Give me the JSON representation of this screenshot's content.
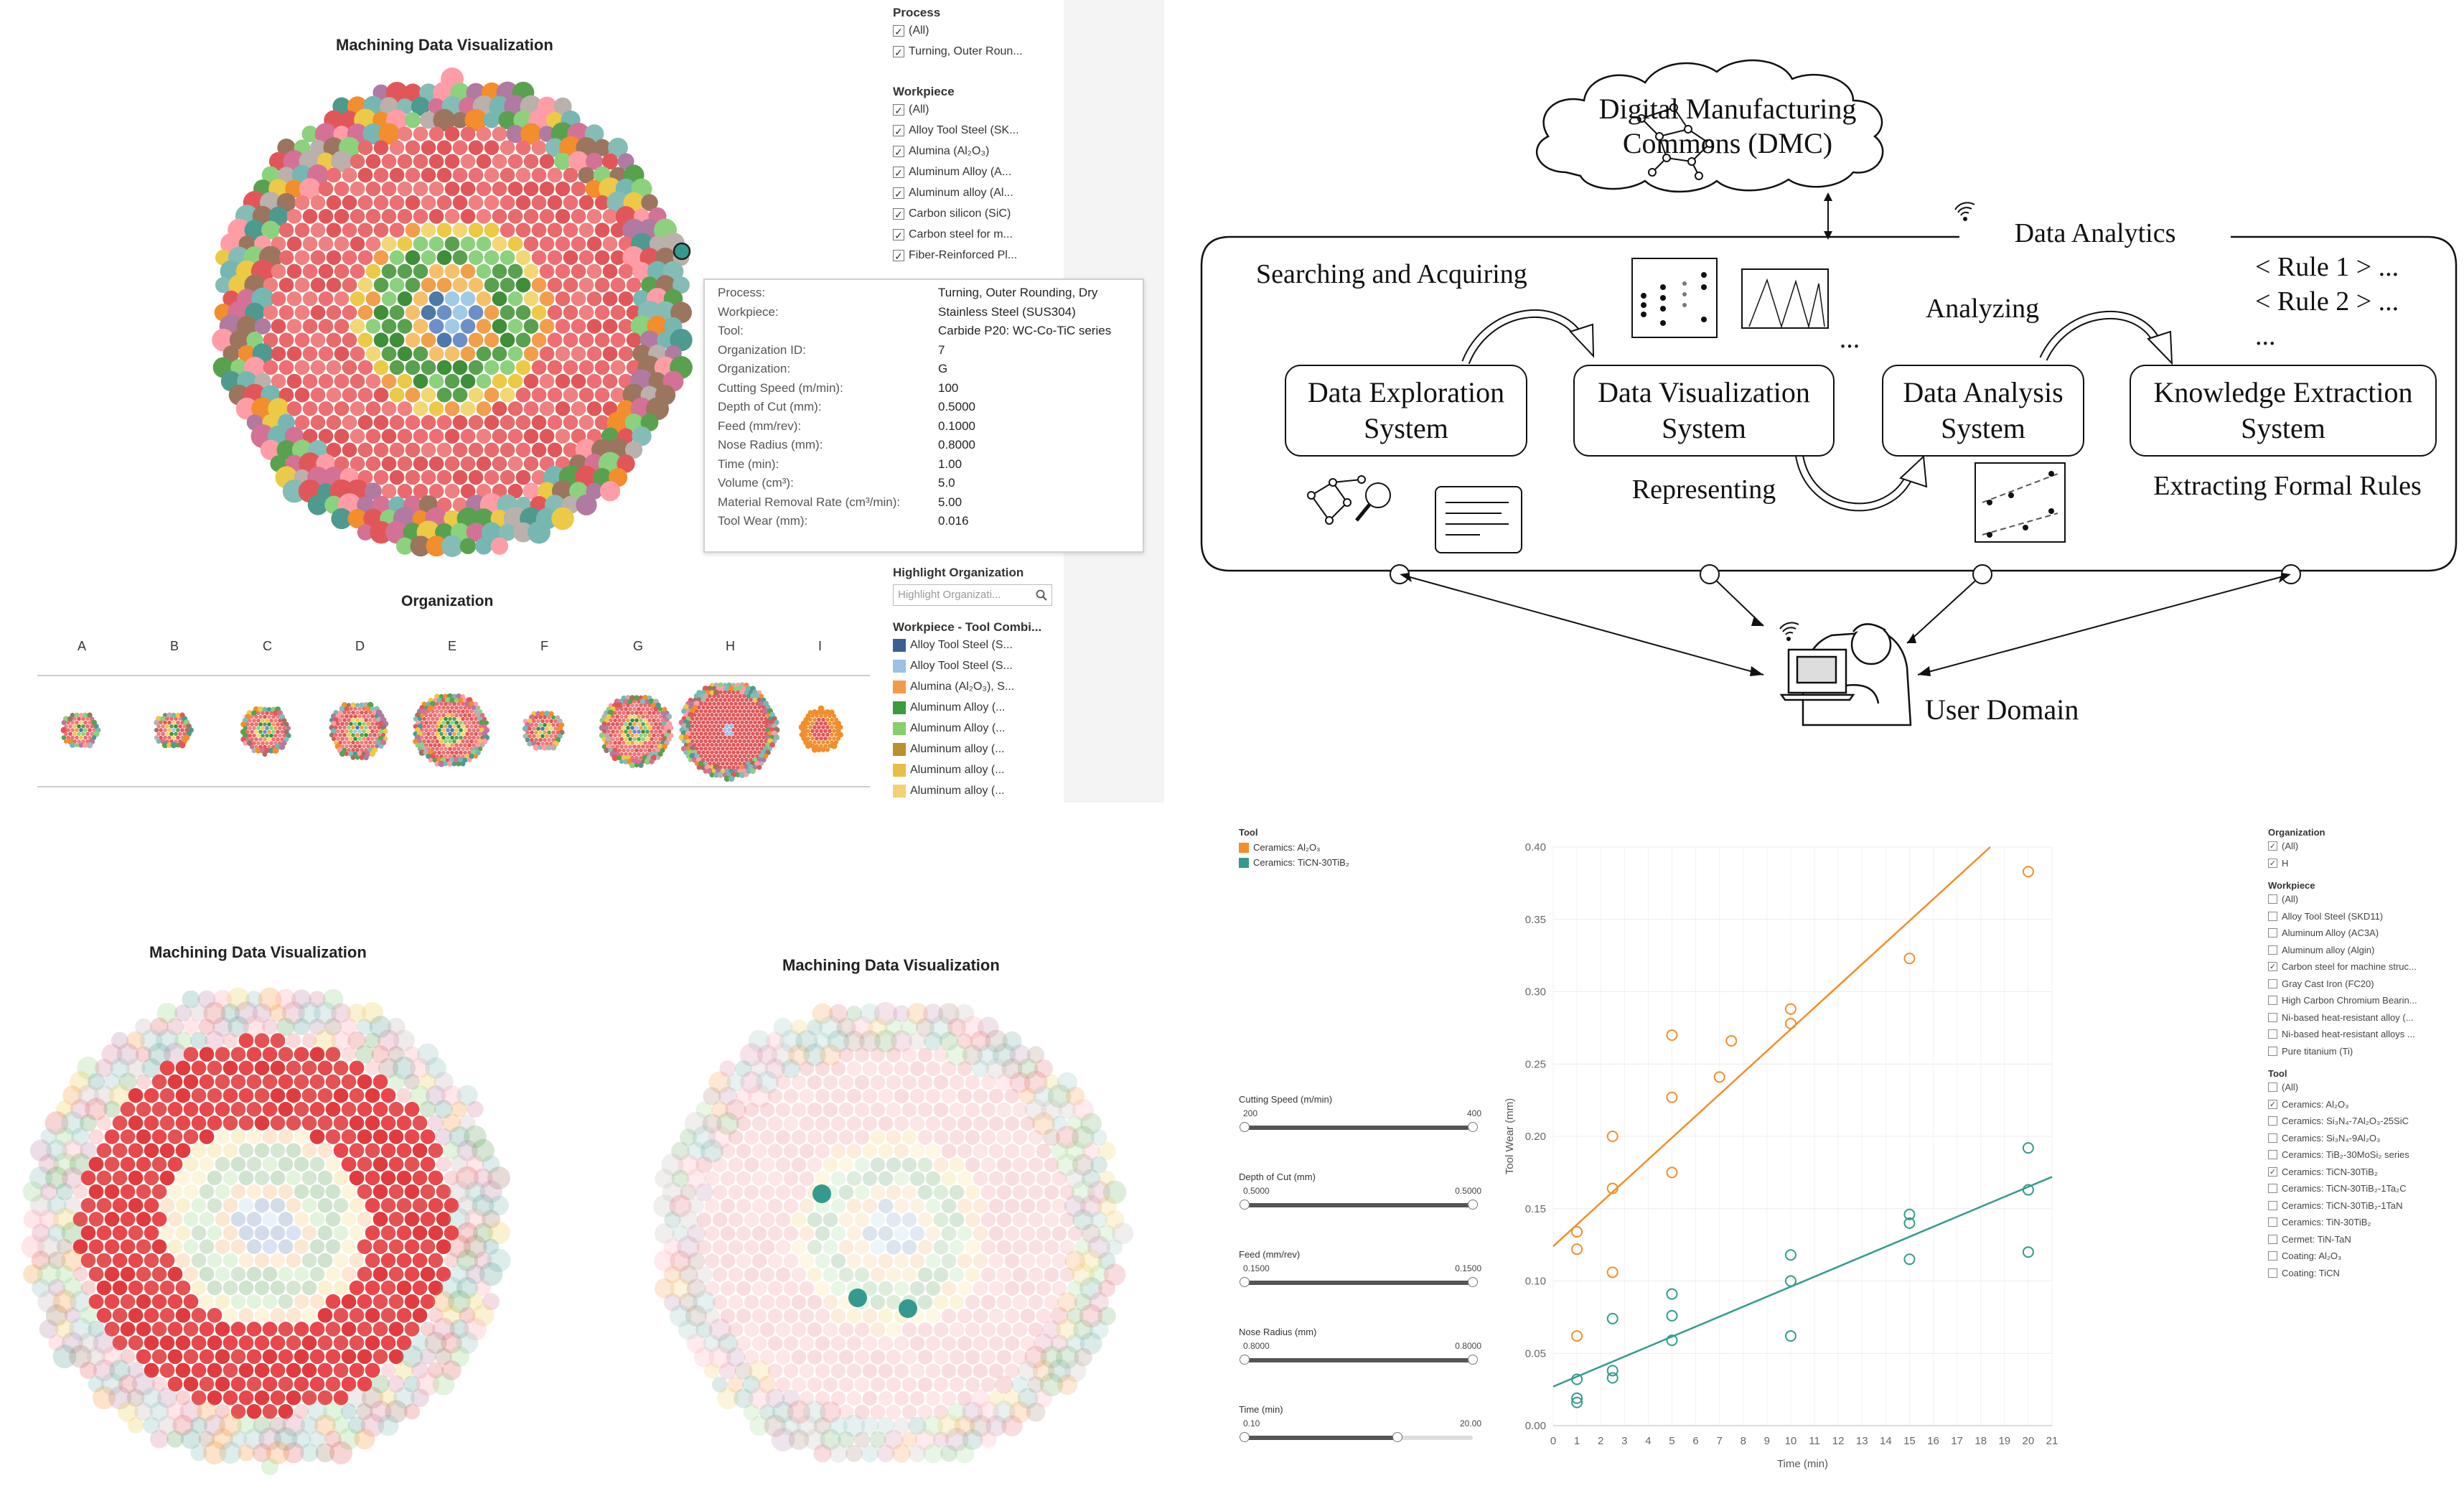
{
  "panel1": {
    "title": "Machining Data Visualization",
    "org_title": "Organization",
    "org_labels": [
      "A",
      "B",
      "C",
      "D",
      "E",
      "F",
      "G",
      "H",
      "I"
    ],
    "process": {
      "title": "Process",
      "items": [
        "(All)",
        "Turning, Outer Roun..."
      ]
    },
    "workpiece": {
      "title": "Workpiece",
      "items": [
        "(All)",
        "Alloy Tool Steel (SK...",
        "Alumina (Al₂O₃)",
        "Aluminum Alloy (A...",
        "Aluminum alloy (Al...",
        "Carbon silicon (SiC)",
        "Carbon steel for m...",
        "Fiber-Reinforced Pl..."
      ]
    },
    "highlight": {
      "title": "Highlight Organization",
      "placeholder": "Highlight Organizati..."
    },
    "legend": {
      "title": "Workpiece - Tool Combi...",
      "items": [
        {
          "label": "Alloy Tool Steel (S...",
          "color": "#3a5f96"
        },
        {
          "label": "Alloy Tool Steel (S...",
          "color": "#9cc0e6"
        },
        {
          "label": "Alumina (Al₂O₃), S...",
          "color": "#f29a48"
        },
        {
          "label": "Aluminum Alloy (...",
          "color": "#3e9a3e"
        },
        {
          "label": "Aluminum Alloy (...",
          "color": "#86cf6d"
        },
        {
          "label": "Aluminum alloy (...",
          "color": "#b8922e"
        },
        {
          "label": "Aluminum alloy (...",
          "color": "#e7bf44"
        },
        {
          "label": "Aluminum alloy (...",
          "color": "#f2d275"
        }
      ]
    },
    "tooltip": {
      "rows": [
        {
          "k": "Process:",
          "v": "Turning, Outer Rounding, Dry"
        },
        {
          "k": "Workpiece:",
          "v": "Stainless Steel (SUS304)"
        },
        {
          "k": "Tool:",
          "v": "Carbide P20: WC-Co-TiC series"
        },
        {
          "k": "Organization ID:",
          "v": "7"
        },
        {
          "k": "Organization:",
          "v": "G"
        },
        {
          "k": "Cutting Speed (m/min):",
          "v": "100"
        },
        {
          "k": "Depth of Cut (mm):",
          "v": "0.5000"
        },
        {
          "k": "Feed (mm/rev):",
          "v": "0.1000"
        },
        {
          "k": "Nose Radius (mm):",
          "v": "0.8000"
        },
        {
          "k": "Time (min):",
          "v": "1.00"
        },
        {
          "k": "Volume (cm³):",
          "v": "5.0"
        },
        {
          "k": "Material Removal Rate (cm³/min):",
          "v": "5.00"
        },
        {
          "k": "Tool Wear (mm):",
          "v": "0.016"
        }
      ]
    }
  },
  "panel2": {
    "dmc": [
      "Digital Manufacturing",
      "Commons (DMC)"
    ],
    "analytics": "Data Analytics",
    "searching": "Searching and Acquiring",
    "analyzing": "Analyzing",
    "representing": "Representing",
    "extracting": "Extracting Formal Rules",
    "rules": [
      "< Rule 1 > ...",
      "< Rule 2 > ...",
      "..."
    ],
    "dots": "...",
    "systems": [
      [
        "Data Exploration",
        "System"
      ],
      [
        "Data Visualization",
        "System"
      ],
      [
        "Data Analysis",
        "System"
      ],
      [
        "Knowledge Extraction",
        "System"
      ]
    ],
    "user": "User Domain"
  },
  "panel3": {
    "title_left": "Machining Data Visualization",
    "title_right": "Machining Data Visualization"
  },
  "panel4": {
    "tool_legend_title": "Tool",
    "tool_legend": [
      {
        "label": "Ceramics: Al₂O₃",
        "color": "#f28e2b"
      },
      {
        "label": "Ceramics: TiCN-30TiB₂",
        "color": "#359a8e"
      }
    ],
    "sliders": [
      {
        "label": "Cutting Speed (m/min)",
        "min": "200",
        "max": "400",
        "from": 0,
        "to": 1
      },
      {
        "label": "Depth of Cut (mm)",
        "min": "0.5000",
        "max": "0.5000",
        "from": 0,
        "to": 1
      },
      {
        "label": "Feed (mm/rev)",
        "min": "0.1500",
        "max": "0.1500",
        "from": 0,
        "to": 1
      },
      {
        "label": "Nose Radius (mm)",
        "min": "0.8000",
        "max": "0.8000",
        "from": 0,
        "to": 1
      },
      {
        "label": "Time (min)",
        "min": "0.10",
        "max": "20.00",
        "from": 0,
        "to": 0.67
      }
    ],
    "organization": {
      "title": "Organization",
      "items": [
        {
          "label": "(All)",
          "checked": true
        },
        {
          "label": "H",
          "checked": true
        }
      ]
    },
    "workpiece": {
      "title": "Workpiece",
      "items": [
        {
          "label": "(All)",
          "checked": false
        },
        {
          "label": "Alloy Tool Steel (SKD11)",
          "checked": false
        },
        {
          "label": "Aluminum Alloy (AC3A)",
          "checked": false
        },
        {
          "label": "Aluminum alloy (Algin)",
          "checked": false
        },
        {
          "label": "Carbon steel for machine struc...",
          "checked": true
        },
        {
          "label": "Gray Cast Iron (FC20)",
          "checked": false
        },
        {
          "label": "High Carbon Chromium Bearin...",
          "checked": false
        },
        {
          "label": "Ni-based heat-resistant alloy (...",
          "checked": false
        },
        {
          "label": "Ni-based heat-resistant alloys ...",
          "checked": false
        },
        {
          "label": "Pure titanium (Ti)",
          "checked": false
        }
      ]
    },
    "tool": {
      "title": "Tool",
      "items": [
        {
          "label": "(All)",
          "checked": false
        },
        {
          "label": "Ceramics: Al₂O₃",
          "checked": true
        },
        {
          "label": "Ceramics: Si₃N₄-7Al₂O₃-25SiC",
          "checked": false
        },
        {
          "label": "Ceramics: Si₃N₄-9Al₂O₃",
          "checked": false
        },
        {
          "label": "Ceramics: TiB₂-30MoSi₂ series",
          "checked": false
        },
        {
          "label": "Ceramics: TiCN-30TiB₂",
          "checked": true
        },
        {
          "label": "Ceramics: TiCN-30TiB₂-1Ta₂C",
          "checked": false
        },
        {
          "label": "Ceramics: TiCN-30TiB₂-1TaN",
          "checked": false
        },
        {
          "label": "Ceramics: TiN-30TiB₂",
          "checked": false
        },
        {
          "label": "Cermet: TiN-TaN",
          "checked": false
        },
        {
          "label": "Coating: Al₂O₃",
          "checked": false
        },
        {
          "label": "Coating: TiCN",
          "checked": false
        }
      ]
    }
  },
  "chart_data": {
    "type": "scatter",
    "xlabel": "Time (min)",
    "ylabel": "Tool Wear (mm)",
    "xlim": [
      0,
      21
    ],
    "ylim": [
      0,
      0.4
    ],
    "x_ticks": [
      0,
      1,
      2,
      3,
      4,
      5,
      6,
      7,
      8,
      9,
      10,
      11,
      12,
      13,
      14,
      15,
      16,
      17,
      18,
      19,
      20,
      21
    ],
    "y_ticks": [
      0.0,
      0.05,
      0.1,
      0.15,
      0.2,
      0.25,
      0.3,
      0.35,
      0.4
    ],
    "series": [
      {
        "name": "Ceramics: Al₂O₃",
        "color": "#f28e2b",
        "points": [
          [
            1,
            0.062
          ],
          [
            1,
            0.122
          ],
          [
            1,
            0.134
          ],
          [
            2.5,
            0.106
          ],
          [
            2.5,
            0.164
          ],
          [
            2.5,
            0.2
          ],
          [
            5,
            0.175
          ],
          [
            5,
            0.227
          ],
          [
            5,
            0.27
          ],
          [
            7,
            0.241
          ],
          [
            7.5,
            0.266
          ],
          [
            10,
            0.278
          ],
          [
            10,
            0.288
          ],
          [
            15,
            0.323
          ],
          [
            20,
            0.383
          ]
        ],
        "trend": [
          [
            0,
            0.124
          ],
          [
            18.4,
            0.4
          ]
        ]
      },
      {
        "name": "Ceramics: TiCN-30TiB₂",
        "color": "#359a8e",
        "points": [
          [
            1,
            0.016
          ],
          [
            1,
            0.019
          ],
          [
            1,
            0.032
          ],
          [
            2.5,
            0.033
          ],
          [
            2.5,
            0.038
          ],
          [
            2.5,
            0.074
          ],
          [
            5,
            0.059
          ],
          [
            5,
            0.076
          ],
          [
            5,
            0.091
          ],
          [
            10,
            0.062
          ],
          [
            10,
            0.1
          ],
          [
            10,
            0.118
          ],
          [
            15,
            0.115
          ],
          [
            15,
            0.14
          ],
          [
            15,
            0.146
          ],
          [
            20,
            0.12
          ],
          [
            20,
            0.163
          ],
          [
            20,
            0.192
          ]
        ],
        "trend": [
          [
            0,
            0.027
          ],
          [
            21,
            0.172
          ]
        ]
      }
    ]
  }
}
